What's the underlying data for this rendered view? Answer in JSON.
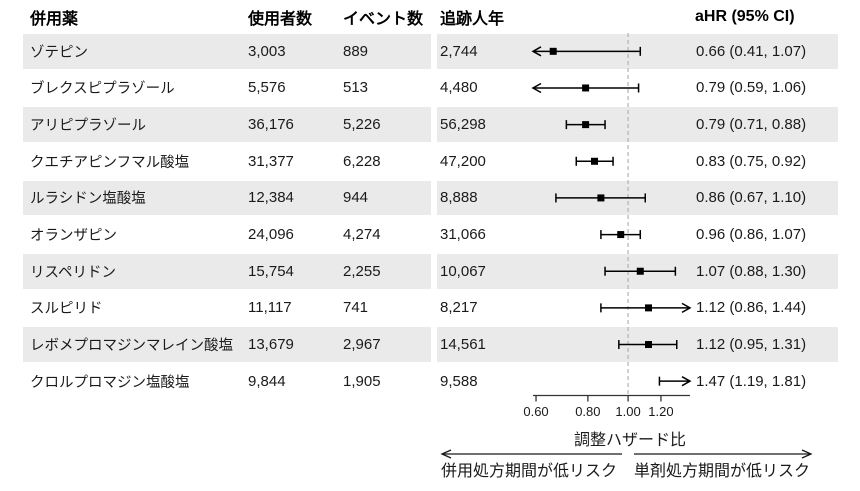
{
  "table": {
    "headers": {
      "drug": "併用薬",
      "users": "使用者数",
      "events": "イベント数",
      "person_years": "追跡人年",
      "ahr": "aHR (95% CI)"
    }
  },
  "chart_data": {
    "type": "scatter",
    "subtype": "forest-plot",
    "xlabel": "調整ハザード比",
    "x_scale": "log",
    "x_domain": [
      0.59,
      1.41
    ],
    "x_ticks": [
      0.6,
      0.8,
      1.0,
      1.2
    ],
    "x_tick_labels": [
      "0.60",
      "0.80",
      "1.00",
      "1.20"
    ],
    "reference_line": 1.0,
    "grid": false,
    "direction_labels": {
      "left": "併用処方期間が低リスク",
      "right": "単剤処方期間が低リスク"
    },
    "rows": [
      {
        "drug": "ゾテピン",
        "users": "3,003",
        "events": "889",
        "person_years": "2,744",
        "ahr": 0.66,
        "ci_low": 0.41,
        "ci_high": 1.07,
        "label": "0.66 (0.41, 1.07)",
        "clip_low": true
      },
      {
        "drug": "ブレクスピプラゾール",
        "users": "5,576",
        "events": "513",
        "person_years": "4,480",
        "ahr": 0.79,
        "ci_low": 0.59,
        "ci_high": 1.06,
        "label": "0.79 (0.59, 1.06)",
        "clip_low": true
      },
      {
        "drug": "アリピプラゾール",
        "users": "36,176",
        "events": "5,226",
        "person_years": "56,298",
        "ahr": 0.79,
        "ci_low": 0.71,
        "ci_high": 0.88,
        "label": "0.79 (0.71, 0.88)"
      },
      {
        "drug": "クエチアピンフマル酸塩",
        "users": "31,377",
        "events": "6,228",
        "person_years": "47,200",
        "ahr": 0.83,
        "ci_low": 0.75,
        "ci_high": 0.92,
        "label": "0.83 (0.75, 0.92)"
      },
      {
        "drug": "ルラシドン塩酸塩",
        "users": "12,384",
        "events": "944",
        "person_years": "8,888",
        "ahr": 0.86,
        "ci_low": 0.67,
        "ci_high": 1.1,
        "label": "0.86 (0.67, 1.10)"
      },
      {
        "drug": "オランザピン",
        "users": "24,096",
        "events": "4,274",
        "person_years": "31,066",
        "ahr": 0.96,
        "ci_low": 0.86,
        "ci_high": 1.07,
        "label": "0.96 (0.86, 1.07)"
      },
      {
        "drug": "リスペリドン",
        "users": "15,754",
        "events": "2,255",
        "person_years": "10,067",
        "ahr": 1.07,
        "ci_low": 0.88,
        "ci_high": 1.3,
        "label": "1.07 (0.88, 1.30)"
      },
      {
        "drug": "スルピリド",
        "users": "11,117",
        "events": "741",
        "person_years": "8,217",
        "ahr": 1.12,
        "ci_low": 0.86,
        "ci_high": 1.44,
        "label": "1.12 (0.86, 1.44)",
        "clip_high": true
      },
      {
        "drug": "レボメプロマジンマレイン酸塩",
        "users": "13,679",
        "events": "2,967",
        "person_years": "14,561",
        "ahr": 1.12,
        "ci_low": 0.95,
        "ci_high": 1.31,
        "label": "1.12 (0.95, 1.31)"
      },
      {
        "drug": "クロルプロマジン塩酸塩",
        "users": "9,844",
        "events": "1,905",
        "person_years": "9,588",
        "ahr": 1.47,
        "ci_low": 1.19,
        "ci_high": 1.81,
        "label": "1.47 (1.19, 1.81)",
        "clip_high": true,
        "point_visible": false
      }
    ]
  },
  "colors": {
    "stripe": "#eaeaea",
    "marker": "#000000",
    "ci_line": "#000000",
    "reference_line": "#b3b3b3",
    "axis": "#333333",
    "text": "#1a1a1a"
  }
}
